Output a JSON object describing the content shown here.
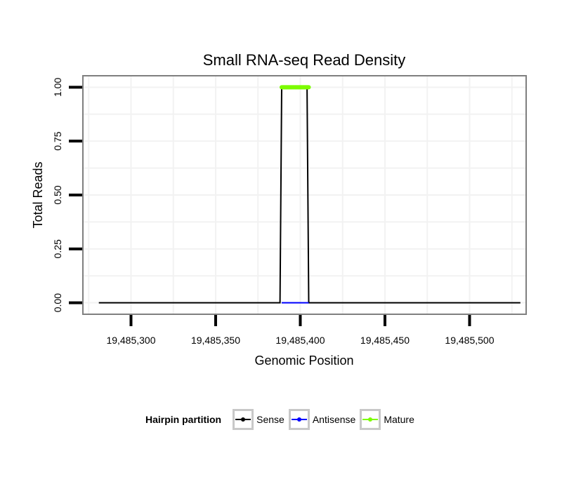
{
  "chart_data": {
    "type": "line",
    "title": "Small RNA-seq Read Density",
    "xlabel": "Genomic Position",
    "ylabel": "Total Reads",
    "xlim": [
      19485272,
      19485533
    ],
    "ylim": [
      -0.05,
      1.05
    ],
    "x_ticks": [
      19485300,
      19485350,
      19485400,
      19485450,
      19485500
    ],
    "x_tick_labels": [
      "19,485,300",
      "19,485,350",
      "19,485,400",
      "19,485,450",
      "19,485,500"
    ],
    "y_ticks": [
      0,
      0.25,
      0.5,
      0.75,
      1
    ],
    "y_tick_labels": [
      "0.00",
      "0.25",
      "0.50",
      "0.75",
      "1.00"
    ],
    "grid": true,
    "legend_position": "bottom",
    "series": [
      {
        "name": "Sense",
        "color": "#000000",
        "x": [
          19485281,
          19485388,
          19485389,
          19485404,
          19485405,
          19485530
        ],
        "y": [
          0,
          0,
          1,
          1,
          0,
          0
        ]
      },
      {
        "name": "Antisense",
        "color": "#0000ff",
        "x": [
          19485389,
          19485405
        ],
        "y": [
          0,
          0
        ]
      },
      {
        "name": "Mature",
        "color": "#7cfc00",
        "x": [
          19485389,
          19485390,
          19485391,
          19485392,
          19485393,
          19485394,
          19485395,
          19485396,
          19485397,
          19485398,
          19485399,
          19485400,
          19485401,
          19485402,
          19485403,
          19485404,
          19485405
        ],
        "y": [
          1,
          1,
          1,
          1,
          1,
          1,
          1,
          1,
          1,
          1,
          1,
          1,
          1,
          1,
          1,
          1,
          1
        ]
      }
    ]
  },
  "legend": {
    "title": "Hairpin partition",
    "items": [
      {
        "label": "Sense",
        "color": "#000000"
      },
      {
        "label": "Antisense",
        "color": "#0000ff"
      },
      {
        "label": "Mature",
        "color": "#7cfc00"
      }
    ]
  }
}
